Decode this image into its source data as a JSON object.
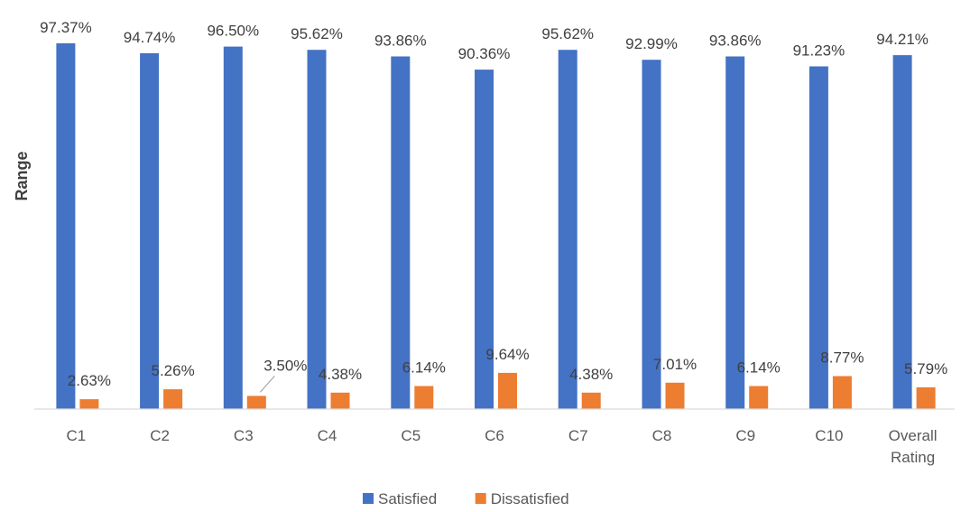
{
  "chart_data": {
    "type": "bar",
    "ylabel": "Range",
    "xlabel": "",
    "title": "",
    "categories": [
      "C1",
      "C2",
      "C3",
      "C4",
      "C5",
      "C6",
      "C7",
      "C8",
      "C9",
      "C10",
      "Overall Rating"
    ],
    "series": [
      {
        "name": "Satisfied",
        "color": "#4472C4",
        "values": [
          97.37,
          94.74,
          96.5,
          95.62,
          93.86,
          90.36,
          95.62,
          92.99,
          93.86,
          91.23,
          94.21
        ],
        "labels": [
          "97.37%",
          "94.74%",
          "96.50%",
          "95.62%",
          "93.86%",
          "90.36%",
          "95.62%",
          "92.99%",
          "93.86%",
          "91.23%",
          "94.21%"
        ]
      },
      {
        "name": "Dissatisfied",
        "color": "#ED7D31",
        "values": [
          2.63,
          5.26,
          3.5,
          4.38,
          6.14,
          9.64,
          4.38,
          7.01,
          6.14,
          8.77,
          5.79
        ],
        "labels": [
          "2.63%",
          "5.26%",
          "3.50%",
          "4.38%",
          "6.14%",
          "9.64%",
          "4.38%",
          "7.01%",
          "6.14%",
          "8.77%",
          "5.79%"
        ]
      }
    ],
    "ylim": [
      0,
      100
    ],
    "grid": false,
    "legend_position": "bottom"
  }
}
